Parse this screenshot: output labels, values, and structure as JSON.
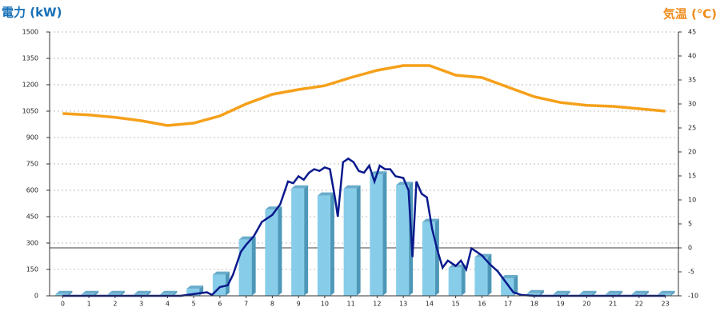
{
  "chart_data": {
    "type": "bar-line",
    "y_title": "電力 (kW)",
    "y2_title": "気温 (℃)",
    "categories": [
      "0",
      "1",
      "2",
      "3",
      "4",
      "5",
      "6",
      "7",
      "8",
      "9",
      "10",
      "11",
      "12",
      "13",
      "14",
      "15",
      "16",
      "17",
      "18",
      "19",
      "20",
      "21",
      "22",
      "23"
    ],
    "ylim": [
      0,
      1500
    ],
    "yticks": [
      0,
      150,
      300,
      450,
      600,
      750,
      900,
      1050,
      1200,
      1350,
      1500
    ],
    "y2lim": [
      -10,
      45
    ],
    "y2ticks": [
      -10,
      -5,
      0,
      5,
      10,
      15,
      20,
      25,
      30,
      35,
      40,
      45
    ],
    "grid": true,
    "bars": {
      "color": "#87cdea",
      "values": [
        10,
        10,
        10,
        10,
        10,
        40,
        120,
        320,
        490,
        610,
        570,
        610,
        690,
        630,
        420,
        160,
        220,
        100,
        15,
        10,
        10,
        10,
        10,
        10
      ]
    },
    "temperature": {
      "color": "#f5a01a",
      "axis": "y2",
      "values": [
        28,
        27.7,
        27.2,
        26.5,
        25.5,
        26,
        27.5,
        30,
        32,
        33,
        33.8,
        35.5,
        37,
        38,
        38,
        36,
        35.5,
        33.5,
        31.5,
        30.3,
        29.7,
        29.5,
        29,
        28.5
      ]
    },
    "power": {
      "color": "#0a1a8c",
      "x": [
        0,
        4.5,
        5,
        5.5,
        5.7,
        6,
        6.3,
        6.5,
        6.8,
        7,
        7.3,
        7.6,
        8,
        8.3,
        8.6,
        8.8,
        9,
        9.2,
        9.4,
        9.6,
        9.8,
        10,
        10.2,
        10.4,
        10.5,
        10.7,
        10.9,
        11.1,
        11.3,
        11.5,
        11.7,
        11.9,
        12.1,
        12.3,
        12.5,
        12.7,
        13,
        13.2,
        13.35,
        13.5,
        13.7,
        13.9,
        14.1,
        14.3,
        14.5,
        14.7,
        15,
        15.2,
        15.4,
        15.6,
        15.8,
        16,
        16.3,
        16.6,
        16.9,
        17.2,
        17.5,
        18,
        23
      ],
      "values": [
        0,
        0,
        10,
        20,
        5,
        50,
        60,
        120,
        250,
        290,
        340,
        420,
        460,
        520,
        650,
        640,
        680,
        660,
        700,
        720,
        710,
        730,
        720,
        550,
        450,
        760,
        780,
        760,
        710,
        700,
        740,
        650,
        740,
        720,
        720,
        680,
        670,
        600,
        220,
        650,
        580,
        560,
        380,
        260,
        160,
        200,
        170,
        200,
        150,
        270,
        250,
        230,
        180,
        140,
        80,
        20,
        5,
        0,
        0
      ]
    }
  }
}
